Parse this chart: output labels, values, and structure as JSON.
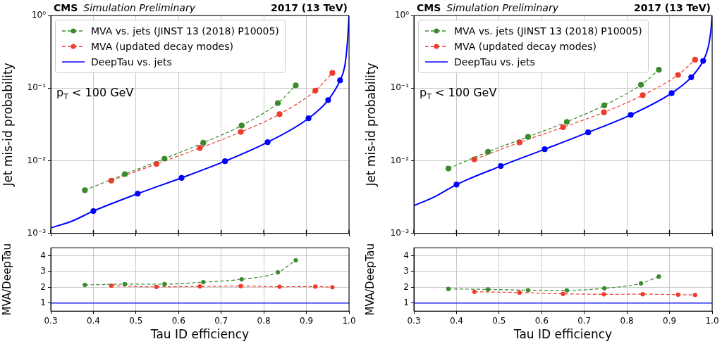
{
  "chart_data": [
    {
      "type": "line",
      "title": "CMS",
      "subtitle": "Simulation Preliminary",
      "ylabel": "Jet mis-id probability",
      "annotations": [
        "2017 (13 TeV)",
        "p$_{T}$ < 100 GeV"
      ],
      "log": "y",
      "grid": true,
      "legend": "top left",
      "tick_labels": "y",
      "xlim": [
        0.3,
        1.0
      ],
      "xticks": [
        0.3,
        0.4,
        0.5,
        0.6,
        0.7,
        0.8,
        0.9,
        1.0
      ],
      "ylim": [
        0.001,
        1
      ],
      "yticks": [
        {
          "value": 0.001,
          "label": "10⁻³"
        },
        {
          "value": 0.01,
          "label": "10⁻²"
        },
        {
          "value": 0.1,
          "label": "10⁻¹"
        },
        {
          "value": 1,
          "label": "10⁰"
        }
      ],
      "series": [
        {
          "name": "MVA vs. jets (JINST 13 (2018) P10005)",
          "color": "#3b8a2e",
          "line_style": "dashed",
          "marker": "circle",
          "x": [
            0.38,
            0.474,
            0.567,
            0.658,
            0.748,
            0.833,
            0.875
          ],
          "values": [
            0.00393,
            0.00655,
            0.0107,
            0.0177,
            0.0306,
            0.0622,
            0.109
          ]
        },
        {
          "name": "MVA (updated decay modes)",
          "color": "#ee3b2b",
          "line_style": "dashed",
          "marker": "circle",
          "x": [
            0.442,
            0.548,
            0.65,
            0.746,
            0.837,
            0.921,
            0.961
          ],
          "values": [
            0.00533,
            0.00904,
            0.015,
            0.0249,
            0.0438,
            0.0923,
            0.162
          ]
        },
        {
          "name": "DeepTau vs. jets",
          "color": "#0000ff",
          "line_style": "solid",
          "marker": "none",
          "x": [
            0.3,
            0.35,
            0.4,
            0.504,
            0.607,
            0.709,
            0.809,
            0.905,
            0.951,
            0.979,
            0.99,
            0.995,
            0.998,
            1.0
          ],
          "values": [
            0.00119,
            0.00148,
            0.00203,
            0.00352,
            0.00582,
            0.00986,
            0.018,
            0.0384,
            0.0684,
            0.128,
            0.2,
            0.35,
            0.6,
            1.0
          ]
        },
        {
          "type": "scatter",
          "color": "#0000ff",
          "marker": "circle",
          "x": [
            0.4,
            0.504,
            0.607,
            0.709,
            0.809,
            0.905,
            0.951,
            0.979
          ],
          "values": [
            0.00203,
            0.00352,
            0.00582,
            0.00986,
            0.018,
            0.0384,
            0.0684,
            0.128
          ]
        }
      ]
    },
    {
      "type": "line",
      "xlabel": "Tau ID efficiency",
      "ylabel": "MVA/DeepTau",
      "grid": true,
      "xlim": [
        0.3,
        1.0
      ],
      "xticks": [
        0.3,
        0.4,
        0.5,
        0.6,
        0.7,
        0.8,
        0.9,
        {
          "value": 1.0,
          "label": "1.0"
        }
      ],
      "ylim": [
        0.5,
        4.5
      ],
      "yticks": [
        1,
        2,
        3,
        4
      ],
      "ref_lines": [
        {
          "axis": "y",
          "value": 1,
          "color": "#0000ff"
        }
      ],
      "series": [
        {
          "color": "#3b8a2e",
          "line_style": "dashed",
          "marker": "circle",
          "x": [
            0.38,
            0.474,
            0.567,
            0.658,
            0.748,
            0.833,
            0.875
          ],
          "values": [
            2.15,
            2.2,
            2.2,
            2.33,
            2.51,
            2.95,
            3.71
          ]
        },
        {
          "color": "#ee3b2b",
          "line_style": "dashed",
          "marker": "circle",
          "x": [
            0.442,
            0.548,
            0.65,
            0.746,
            0.837,
            0.921,
            0.961
          ],
          "values": [
            2.1,
            2.03,
            2.06,
            2.08,
            2.04,
            2.05,
            2.01
          ]
        }
      ]
    },
    {
      "type": "line",
      "title": "CMS",
      "subtitle": "Simulation Preliminary",
      "ylabel": "Jet mis-id probability",
      "annotations": [
        "2017 (13 TeV)",
        "p$_{T}$ < 100 GeV"
      ],
      "log": "y",
      "grid": true,
      "legend": "top left",
      "tick_labels": "y",
      "xlim": [
        0.3,
        1.0
      ],
      "xticks": [
        0.3,
        0.4,
        0.5,
        0.6,
        0.7,
        0.8,
        0.9,
        1.0
      ],
      "ylim": [
        0.001,
        1
      ],
      "yticks": [
        {
          "value": 0.001,
          "label": "10⁻³"
        },
        {
          "value": 0.01,
          "label": "10⁻²"
        },
        {
          "value": 0.1,
          "label": "10⁻¹"
        },
        {
          "value": 1,
          "label": "10⁰"
        }
      ],
      "series": [
        {
          "name": "MVA vs. jets (JINST 13 (2018) P10005)",
          "color": "#3b8a2e",
          "line_style": "dashed",
          "marker": "circle",
          "x": [
            0.381,
            0.474,
            0.568,
            0.659,
            0.747,
            0.833,
            0.875
          ],
          "values": [
            0.00781,
            0.0133,
            0.0214,
            0.0343,
            0.058,
            0.111,
            0.179
          ]
        },
        {
          "name": "MVA (updated decay modes)",
          "color": "#ee3b2b",
          "line_style": "dashed",
          "marker": "circle",
          "x": [
            0.442,
            0.548,
            0.65,
            0.746,
            0.837,
            0.92,
            0.96
          ],
          "values": [
            0.01045,
            0.0179,
            0.0289,
            0.0464,
            0.0798,
            0.152,
            0.246
          ]
        },
        {
          "name": "DeepTau vs. jets",
          "color": "#0000ff",
          "line_style": "solid",
          "marker": "none",
          "x": [
            0.3,
            0.35,
            0.4,
            0.504,
            0.607,
            0.709,
            0.809,
            0.905,
            0.951,
            0.979,
            0.99,
            0.995,
            0.998,
            1.0
          ],
          "values": [
            0.00241,
            0.00322,
            0.0047,
            0.00845,
            0.0144,
            0.0246,
            0.0428,
            0.0853,
            0.141,
            0.237,
            0.35,
            0.5,
            0.7,
            1.0
          ]
        },
        {
          "type": "scatter",
          "color": "#0000ff",
          "marker": "circle",
          "x": [
            0.4,
            0.504,
            0.607,
            0.709,
            0.809,
            0.905,
            0.951,
            0.979
          ],
          "values": [
            0.0047,
            0.00845,
            0.0144,
            0.0246,
            0.0428,
            0.0853,
            0.141,
            0.237
          ]
        }
      ]
    },
    {
      "type": "line",
      "xlabel": "Tau ID efficiency",
      "ylabel": "MVA/DeepTau",
      "grid": true,
      "xlim": [
        0.3,
        1.0
      ],
      "xticks": [
        0.3,
        0.4,
        0.5,
        0.6,
        0.7,
        0.8,
        0.9,
        {
          "value": 1.0,
          "label": "1.0"
        }
      ],
      "ylim": [
        0.5,
        4.5
      ],
      "yticks": [
        1,
        2,
        3,
        4
      ],
      "ref_lines": [
        {
          "axis": "y",
          "value": 1,
          "color": "#0000ff"
        }
      ],
      "series": [
        {
          "color": "#3b8a2e",
          "line_style": "dashed",
          "marker": "circle",
          "x": [
            0.381,
            0.474,
            0.568,
            0.659,
            0.747,
            0.833,
            0.875
          ],
          "values": [
            1.9,
            1.87,
            1.82,
            1.81,
            1.94,
            2.25,
            2.68
          ]
        },
        {
          "color": "#ee3b2b",
          "line_style": "dashed",
          "marker": "circle",
          "x": [
            0.442,
            0.548,
            0.65,
            0.746,
            0.837,
            0.92,
            0.96
          ],
          "values": [
            1.72,
            1.67,
            1.59,
            1.56,
            1.57,
            1.54,
            1.52
          ]
        }
      ]
    }
  ]
}
